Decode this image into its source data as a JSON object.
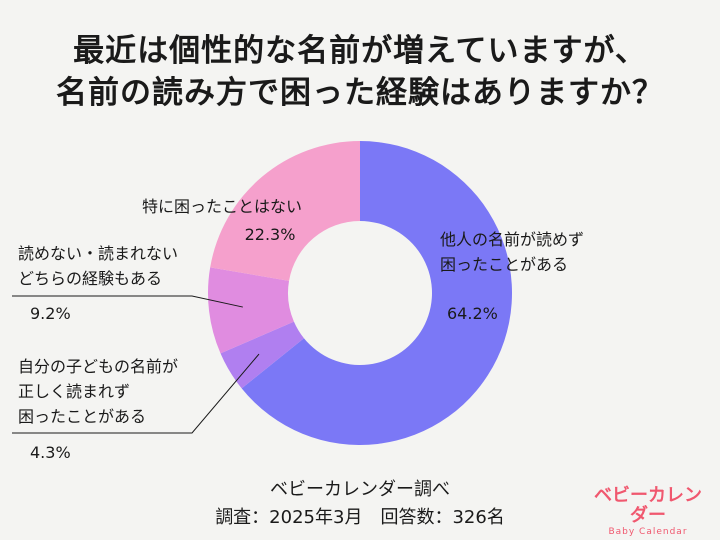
{
  "title_lines": [
    "最近は個性的な名前が増えていますが、",
    "名前の読み方で困った経験はありますか？"
  ],
  "chart_data": {
    "type": "pie",
    "title": "最近は個性的な名前が増えていますが、名前の読み方で困った経験はありますか？",
    "slices": [
      {
        "label_lines": [
          "他人の名前が読めず",
          "困ったことがある"
        ],
        "value": 64.2,
        "value_label": "64.2%",
        "color": "#7b78f6"
      },
      {
        "label_lines": [
          "自分の子どもの名前が",
          "正しく読まれず",
          "困ったことがある"
        ],
        "value": 4.3,
        "value_label": "4.3%",
        "color": "#b07ff0"
      },
      {
        "label_lines": [
          "読めない・読まれない",
          "どちらの経験もある"
        ],
        "value": 9.2,
        "value_label": "9.2%",
        "color": "#e08ce0"
      },
      {
        "label_lines": [
          "特に困ったことはない"
        ],
        "value": 22.3,
        "value_label": "22.3%",
        "color": "#f5a0cc"
      }
    ]
  },
  "footer": {
    "source": "ベビーカレンダー調べ",
    "meta": "調査：2025年3月　回答数：326名"
  },
  "logo": {
    "main": "ベビーカレンダー",
    "sub": "Baby Calendar"
  }
}
